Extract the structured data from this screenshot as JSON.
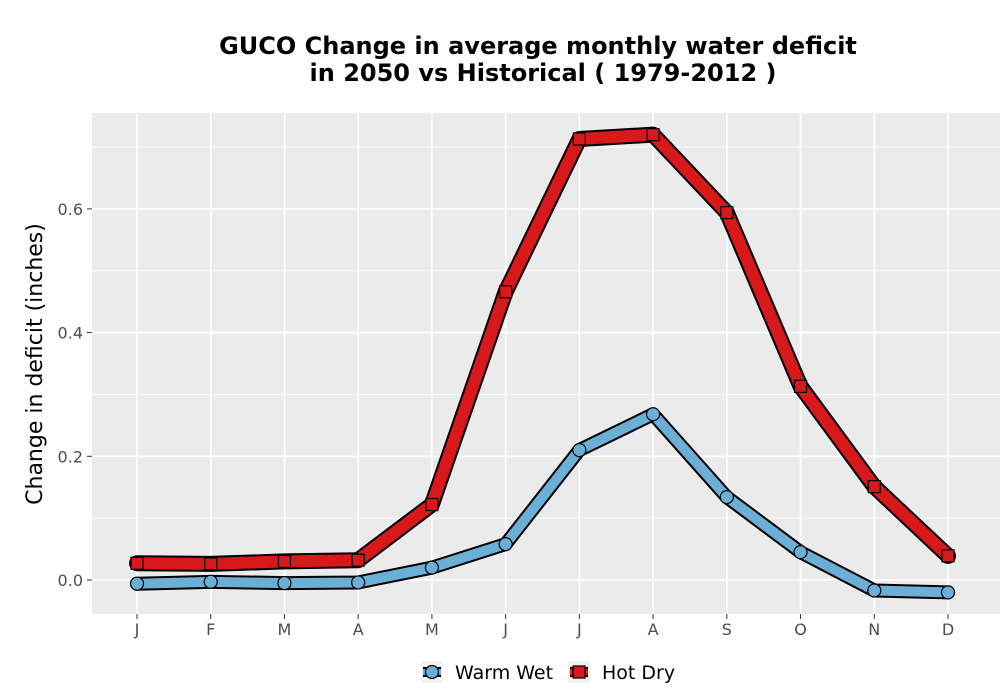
{
  "chart_data": {
    "type": "line",
    "title_line1": "GUCO  Change in average monthly water deficit",
    "title_line2": "in 2050 vs Historical ( 1979-2012 )",
    "xlabel": "",
    "ylabel": "Change in deficit (inches)",
    "categories": [
      "J",
      "F",
      "M",
      "A",
      "M",
      "J",
      "J",
      "A",
      "S",
      "O",
      "N",
      "D"
    ],
    "ylim": [
      -0.055,
      0.755
    ],
    "yticks": [
      0.0,
      0.2,
      0.4,
      0.6
    ],
    "ytick_labels": [
      "0.0",
      "0.2",
      "0.4",
      "0.6"
    ],
    "grid": true,
    "legend_position": "bottom",
    "series": [
      {
        "name": "Warm Wet",
        "marker": "circle",
        "fill_color": "#6baed6",
        "values": [
          -0.006,
          -0.003,
          -0.005,
          -0.004,
          0.02,
          0.058,
          0.21,
          0.268,
          0.134,
          0.045,
          -0.017,
          -0.02
        ]
      },
      {
        "name": "Hot Dry",
        "marker": "square",
        "fill_color": "#d7191c",
        "values": [
          0.027,
          0.026,
          0.03,
          0.032,
          0.122,
          0.466,
          0.713,
          0.72,
          0.594,
          0.313,
          0.151,
          0.039
        ]
      }
    ]
  },
  "colors": {
    "panel_background": "#ebebeb",
    "grid": "#ffffff",
    "outline": "#000000",
    "tick_text": "#4d4d4d"
  }
}
